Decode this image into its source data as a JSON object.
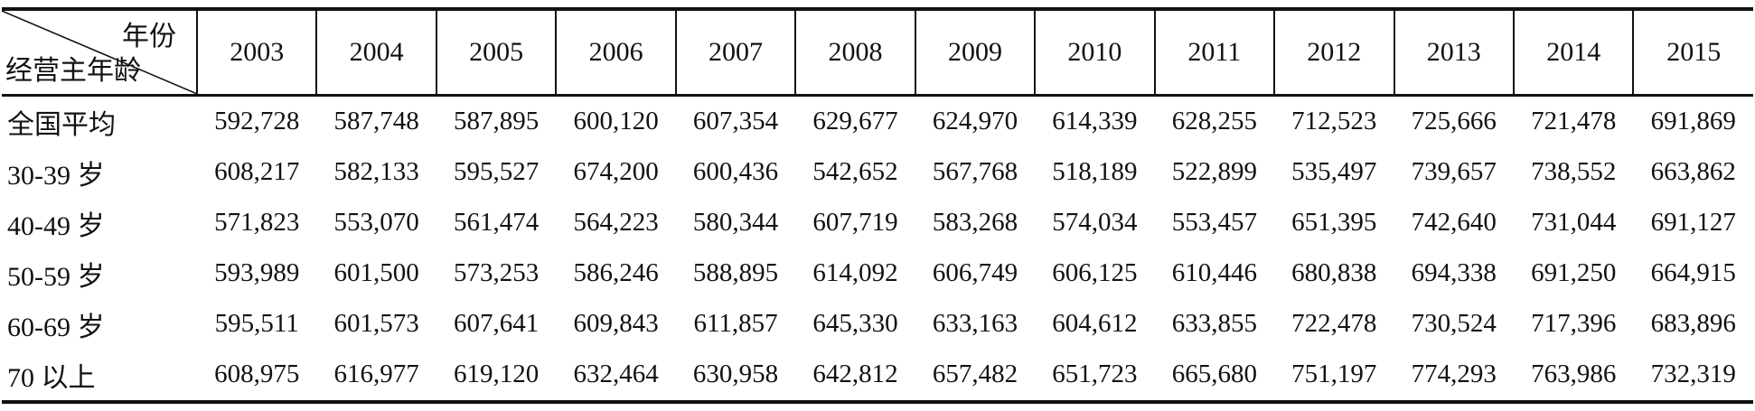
{
  "chart_data": {
    "type": "table",
    "corner": {
      "top_label": "年份",
      "bottom_label": "经营主年龄"
    },
    "columns": [
      "2003",
      "2004",
      "2005",
      "2006",
      "2007",
      "2008",
      "2009",
      "2010",
      "2011",
      "2012",
      "2013",
      "2014",
      "2015"
    ],
    "rows": [
      {
        "label": "全国平均",
        "values": [
          "592,728",
          "587,748",
          "587,895",
          "600,120",
          "607,354",
          "629,677",
          "624,970",
          "614,339",
          "628,255",
          "712,523",
          "725,666",
          "721,478",
          "691,869"
        ]
      },
      {
        "label": "30-39 岁",
        "values": [
          "608,217",
          "582,133",
          "595,527",
          "674,200",
          "600,436",
          "542,652",
          "567,768",
          "518,189",
          "522,899",
          "535,497",
          "739,657",
          "738,552",
          "663,862"
        ]
      },
      {
        "label": "40-49 岁",
        "values": [
          "571,823",
          "553,070",
          "561,474",
          "564,223",
          "580,344",
          "607,719",
          "583,268",
          "574,034",
          "553,457",
          "651,395",
          "742,640",
          "731,044",
          "691,127"
        ]
      },
      {
        "label": "50-59 岁",
        "values": [
          "593,989",
          "601,500",
          "573,253",
          "586,246",
          "588,895",
          "614,092",
          "606,749",
          "606,125",
          "610,446",
          "680,838",
          "694,338",
          "691,250",
          "664,915"
        ]
      },
      {
        "label": "60-69 岁",
        "values": [
          "595,511",
          "601,573",
          "607,641",
          "609,843",
          "611,857",
          "645,330",
          "633,163",
          "604,612",
          "633,855",
          "722,478",
          "730,524",
          "717,396",
          "683,896"
        ]
      },
      {
        "label": "70 以上",
        "values": [
          "608,975",
          "616,977",
          "619,120",
          "632,464",
          "630,958",
          "642,812",
          "657,482",
          "651,723",
          "665,680",
          "751,197",
          "774,293",
          "763,986",
          "732,319"
        ]
      }
    ]
  }
}
